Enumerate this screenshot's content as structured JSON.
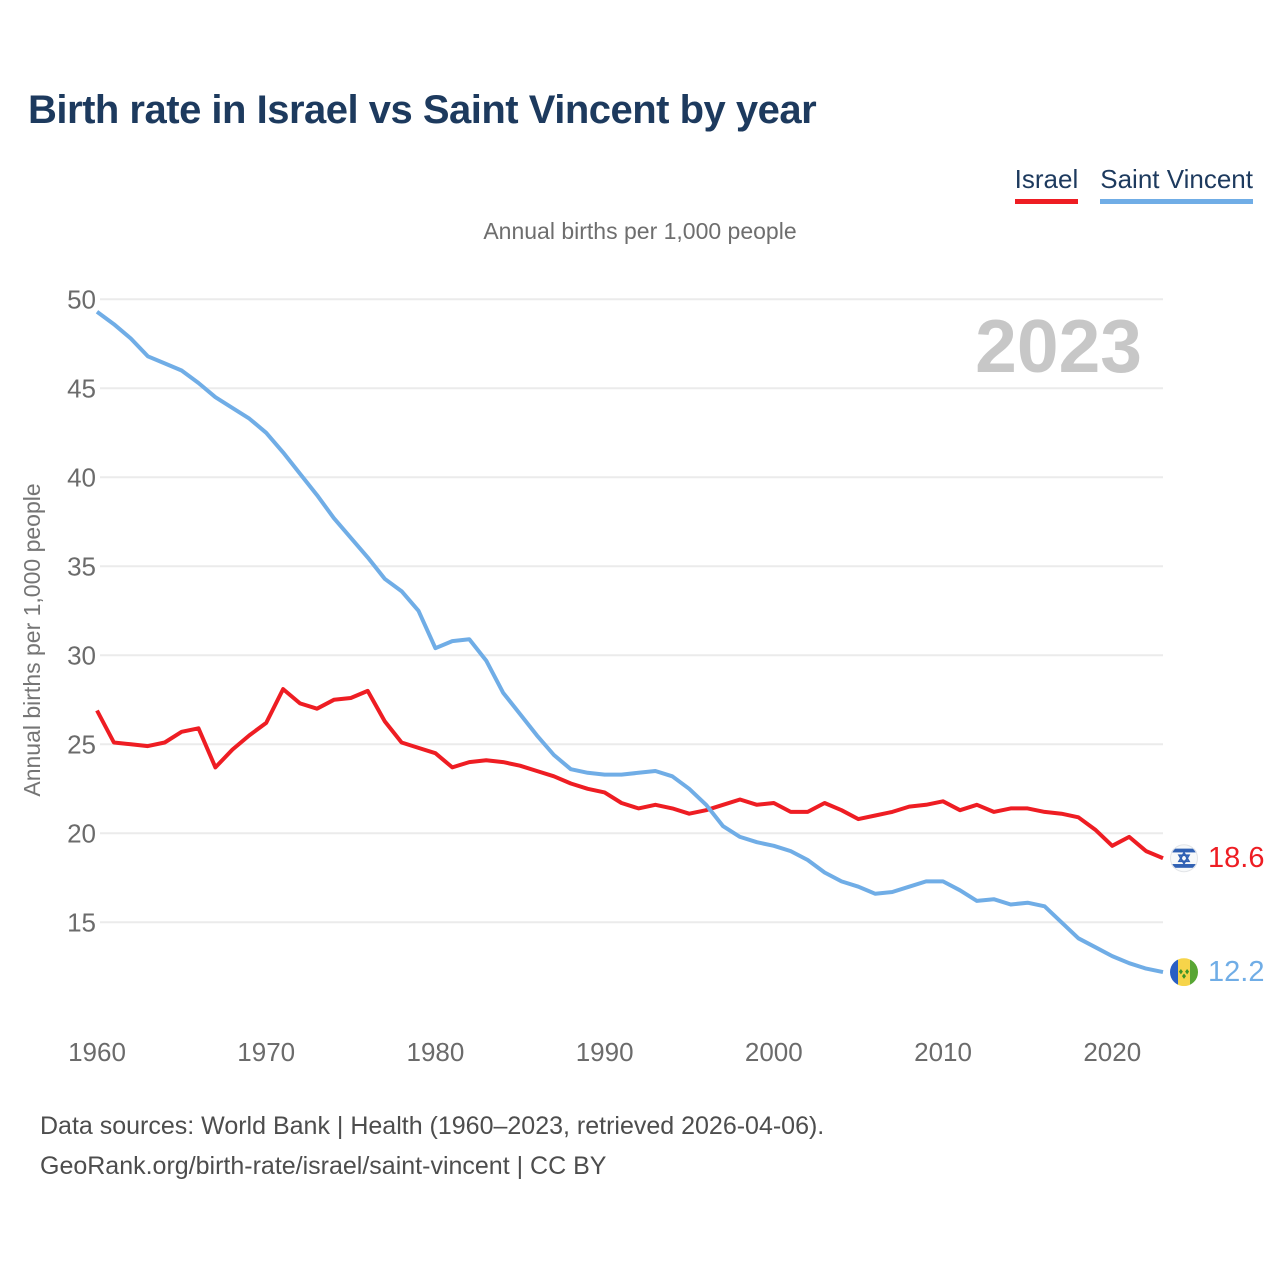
{
  "header": {
    "title": "Birth rate in Israel vs Saint Vincent by year"
  },
  "legend": {
    "items": [
      {
        "label": "Israel",
        "color": "#ee1d23"
      },
      {
        "label": "Saint Vincent",
        "color": "#70ade6"
      }
    ]
  },
  "palette": {
    "title_navy": "#1d3a5e",
    "israel_red": "#ee1d23",
    "saint_vincent_blue": "#70ade6",
    "watermark_gray": "#c7c7c7",
    "gridline_gray": "#ebebeb"
  },
  "chart_data": {
    "type": "line",
    "title": "Birth rate in Israel vs Saint Vincent by year",
    "subtitle": "Annual births per 1,000 people",
    "ylabel": "Annual births per 1,000 people",
    "watermark": "2023",
    "grid": true,
    "legend_position": "top-right",
    "ylim": [
      10,
      51
    ],
    "yticks": [
      15,
      20,
      25,
      30,
      35,
      40,
      45,
      50
    ],
    "xticks": [
      1960,
      1970,
      1980,
      1990,
      2000,
      2010,
      2020
    ],
    "x": [
      1960,
      1961,
      1962,
      1963,
      1964,
      1965,
      1966,
      1967,
      1968,
      1969,
      1970,
      1971,
      1972,
      1973,
      1974,
      1975,
      1976,
      1977,
      1978,
      1979,
      1980,
      1981,
      1982,
      1983,
      1984,
      1985,
      1986,
      1987,
      1988,
      1989,
      1990,
      1991,
      1992,
      1993,
      1994,
      1995,
      1996,
      1997,
      1998,
      1999,
      2000,
      2001,
      2002,
      2003,
      2004,
      2005,
      2006,
      2007,
      2008,
      2009,
      2010,
      2011,
      2012,
      2013,
      2014,
      2015,
      2016,
      2017,
      2018,
      2019,
      2020,
      2021,
      2022,
      2023
    ],
    "series": [
      {
        "name": "Israel",
        "color": "#ee1d23",
        "end_label": "18.6",
        "flag": "israel",
        "values": [
          26.9,
          25.1,
          25.0,
          24.9,
          25.1,
          25.7,
          25.9,
          23.7,
          24.7,
          25.5,
          26.2,
          28.1,
          27.3,
          27.0,
          27.5,
          27.6,
          28.0,
          26.3,
          25.1,
          24.8,
          24.5,
          23.7,
          24.0,
          24.1,
          24.0,
          23.8,
          23.5,
          23.2,
          22.8,
          22.5,
          22.3,
          21.7,
          21.4,
          21.6,
          21.4,
          21.1,
          21.3,
          21.6,
          21.9,
          21.6,
          21.7,
          21.2,
          21.2,
          21.7,
          21.3,
          20.8,
          21.0,
          21.2,
          21.5,
          21.6,
          21.8,
          21.3,
          21.6,
          21.2,
          21.4,
          21.4,
          21.2,
          21.1,
          20.9,
          20.2,
          19.3,
          19.8,
          19.0,
          18.6
        ]
      },
      {
        "name": "Saint Vincent",
        "color": "#70ade6",
        "end_label": "12.2",
        "flag": "saint-vincent",
        "values": [
          49.3,
          48.6,
          47.8,
          46.8,
          46.4,
          46.0,
          45.3,
          44.5,
          43.9,
          43.3,
          42.5,
          41.4,
          40.2,
          39.0,
          37.7,
          36.6,
          35.5,
          34.3,
          33.6,
          32.5,
          30.4,
          30.8,
          30.9,
          29.7,
          27.9,
          26.7,
          25.5,
          24.4,
          23.6,
          23.4,
          23.3,
          23.3,
          23.4,
          23.5,
          23.2,
          22.5,
          21.6,
          20.4,
          19.8,
          19.5,
          19.3,
          19.0,
          18.5,
          17.8,
          17.3,
          17.0,
          16.6,
          16.7,
          17.0,
          17.3,
          17.3,
          16.8,
          16.2,
          16.3,
          16.0,
          16.1,
          15.9,
          15.0,
          14.1,
          13.6,
          13.1,
          12.7,
          12.4,
          12.2
        ]
      }
    ]
  },
  "footer": {
    "line1": "Data sources: World Bank | Health (1960–2023, retrieved 2026-04-06).",
    "line2": "GeoRank.org/birth-rate/israel/saint-vincent | CC BY"
  }
}
